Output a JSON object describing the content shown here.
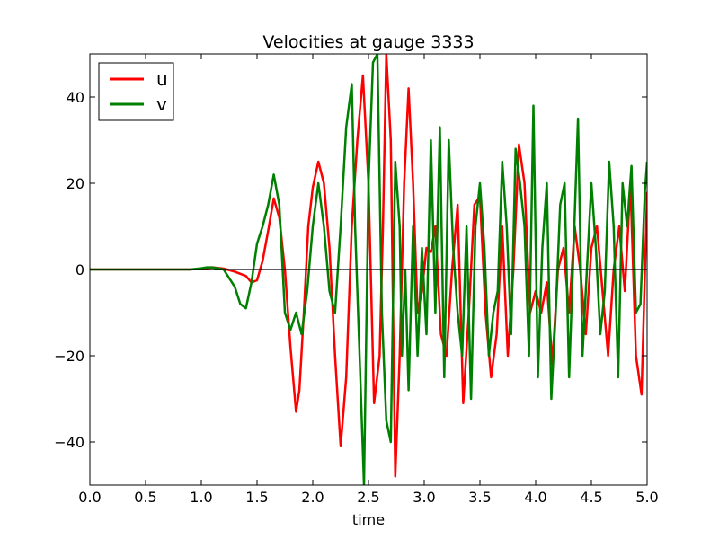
{
  "chart_data": {
    "type": "line",
    "title": "Velocities at gauge 3333",
    "xlabel": "time",
    "ylabel": "",
    "xlim": [
      0.0,
      5.0
    ],
    "ylim": [
      -50,
      50
    ],
    "xticks": [
      "0.0",
      "0.5",
      "1.0",
      "1.5",
      "2.0",
      "2.5",
      "3.0",
      "3.5",
      "4.0",
      "4.5",
      "5.0"
    ],
    "yticks": [
      "−40",
      "−20",
      "0",
      "20",
      "40"
    ],
    "ytick_values": [
      -40,
      -20,
      0,
      20,
      40
    ],
    "grid": false,
    "zero_line": true,
    "legend_position": "top-left",
    "series": [
      {
        "name": "u",
        "color": "#ff0000",
        "x": [
          0.0,
          0.5,
          0.9,
          1.0,
          1.1,
          1.2,
          1.3,
          1.4,
          1.45,
          1.5,
          1.55,
          1.6,
          1.65,
          1.7,
          1.75,
          1.8,
          1.85,
          1.88,
          1.92,
          1.96,
          2.0,
          2.05,
          2.1,
          2.15,
          2.2,
          2.25,
          2.3,
          2.35,
          2.4,
          2.45,
          2.5,
          2.55,
          2.6,
          2.63,
          2.66,
          2.7,
          2.74,
          2.78,
          2.82,
          2.86,
          2.9,
          2.94,
          2.98,
          3.02,
          3.06,
          3.1,
          3.15,
          3.2,
          3.25,
          3.3,
          3.35,
          3.4,
          3.45,
          3.5,
          3.55,
          3.6,
          3.65,
          3.7,
          3.75,
          3.8,
          3.85,
          3.9,
          3.95,
          4.0,
          4.05,
          4.1,
          4.15,
          4.2,
          4.25,
          4.3,
          4.35,
          4.4,
          4.45,
          4.5,
          4.55,
          4.6,
          4.65,
          4.7,
          4.75,
          4.8,
          4.85,
          4.9,
          4.95,
          5.0
        ],
        "y": [
          0.0,
          0.0,
          0.0,
          0.2,
          0.5,
          0.2,
          -0.5,
          -1.5,
          -3.0,
          -2.5,
          2.0,
          9.0,
          16.5,
          12.0,
          0.0,
          -18.0,
          -33.0,
          -28.0,
          -10.0,
          10.0,
          19.0,
          25.0,
          20.0,
          5.0,
          -20.0,
          -41.0,
          -25.0,
          10.0,
          30.0,
          45.0,
          20.0,
          -31.0,
          -20.0,
          10.0,
          50.0,
          30.0,
          -48.0,
          -20.0,
          20.0,
          42.0,
          20.0,
          -10.0,
          -5.0,
          5.0,
          4.0,
          10.0,
          -15.0,
          -20.0,
          0.0,
          15.0,
          -31.0,
          -10.0,
          15.0,
          17.0,
          -10.0,
          -25.0,
          -15.0,
          10.0,
          -20.0,
          0.0,
          29.0,
          20.0,
          -10.0,
          -5.0,
          -10.0,
          -3.0,
          -22.0,
          0.0,
          5.0,
          -10.0,
          10.0,
          0.0,
          -15.0,
          5.0,
          10.0,
          -5.0,
          -20.0,
          0.0,
          10.0,
          -5.0,
          20.0,
          -20.0,
          -29.0,
          18.0
        ]
      },
      {
        "name": "v",
        "color": "#008000",
        "x": [
          0.0,
          0.5,
          0.9,
          1.0,
          1.05,
          1.1,
          1.2,
          1.3,
          1.35,
          1.4,
          1.45,
          1.5,
          1.55,
          1.6,
          1.65,
          1.7,
          1.75,
          1.8,
          1.85,
          1.9,
          1.95,
          2.0,
          2.05,
          2.1,
          2.15,
          2.2,
          2.25,
          2.3,
          2.35,
          2.38,
          2.42,
          2.46,
          2.5,
          2.54,
          2.58,
          2.62,
          2.66,
          2.7,
          2.74,
          2.78,
          2.8,
          2.83,
          2.86,
          2.9,
          2.94,
          2.98,
          3.02,
          3.06,
          3.1,
          3.14,
          3.18,
          3.22,
          3.26,
          3.3,
          3.34,
          3.38,
          3.42,
          3.46,
          3.5,
          3.54,
          3.58,
          3.62,
          3.66,
          3.7,
          3.74,
          3.78,
          3.82,
          3.86,
          3.9,
          3.94,
          3.98,
          4.02,
          4.06,
          4.1,
          4.14,
          4.18,
          4.22,
          4.26,
          4.3,
          4.34,
          4.38,
          4.42,
          4.46,
          4.5,
          4.54,
          4.58,
          4.62,
          4.66,
          4.7,
          4.74,
          4.78,
          4.82,
          4.86,
          4.9,
          4.94,
          4.98,
          5.0
        ],
        "y": [
          0.0,
          0.0,
          0.0,
          0.3,
          0.5,
          0.5,
          0.0,
          -4.0,
          -8.0,
          -9.0,
          -3.0,
          6.0,
          10.0,
          15.0,
          22.0,
          15.0,
          -10.0,
          -14.0,
          -10.0,
          -15.0,
          -5.0,
          10.0,
          20.0,
          10.0,
          -5.0,
          -10.0,
          10.0,
          33.0,
          43.0,
          10.0,
          -20.0,
          -50.0,
          20.0,
          48.0,
          50.0,
          -10.0,
          -35.0,
          -40.0,
          25.0,
          10.0,
          -20.0,
          0.0,
          -28.0,
          10.0,
          -20.0,
          5.0,
          -15.0,
          30.0,
          -10.0,
          33.0,
          -25.0,
          30.0,
          5.0,
          -10.0,
          -20.0,
          10.0,
          -30.0,
          10.0,
          20.0,
          5.0,
          -20.0,
          -10.0,
          -5.0,
          25.0,
          10.0,
          -15.0,
          28.0,
          20.0,
          10.0,
          -20.0,
          38.0,
          -25.0,
          5.0,
          20.0,
          -30.0,
          -10.0,
          15.0,
          20.0,
          -25.0,
          5.0,
          35.0,
          -20.0,
          0.0,
          20.0,
          5.0,
          -15.0,
          -5.0,
          25.0,
          10.0,
          -25.0,
          20.0,
          10.0,
          24.0,
          -10.0,
          -8.0,
          18.0,
          25.0
        ]
      }
    ]
  }
}
